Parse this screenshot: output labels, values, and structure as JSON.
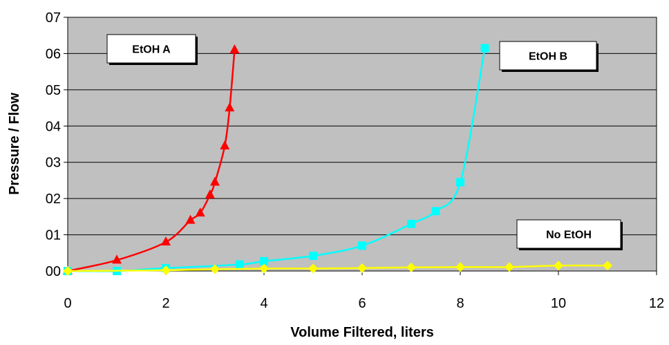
{
  "chart_data": {
    "type": "line",
    "xlabel": "Volume Filtered, liters",
    "ylabel": "Pressure / Flow",
    "xlim": [
      0,
      12
    ],
    "ylim": [
      0,
      7
    ],
    "x_ticks": [
      "0",
      "2",
      "4",
      "6",
      "8",
      "10",
      "12"
    ],
    "y_ticks": [
      "00",
      "01",
      "02",
      "03",
      "04",
      "05",
      "06",
      "07"
    ],
    "grid": "horizontal",
    "background": "#c0c0c0",
    "series": [
      {
        "name": "EtOH A",
        "color": "#ff0000",
        "marker": "triangle",
        "points": [
          [
            0,
            0.0
          ],
          [
            1.0,
            0.3
          ],
          [
            2.0,
            0.8
          ],
          [
            2.5,
            1.4
          ],
          [
            2.7,
            1.6
          ],
          [
            2.9,
            2.1
          ],
          [
            3.0,
            2.45
          ],
          [
            3.2,
            3.45
          ],
          [
            3.3,
            4.5
          ],
          [
            3.4,
            6.1
          ]
        ]
      },
      {
        "name": "EtOH B",
        "color": "#00ffff",
        "marker": "square",
        "points": [
          [
            0,
            0.0
          ],
          [
            1.0,
            0.0
          ],
          [
            2.0,
            0.08
          ],
          [
            3.5,
            0.18
          ],
          [
            4.0,
            0.27
          ],
          [
            5.0,
            0.42
          ],
          [
            6.0,
            0.7
          ],
          [
            7.0,
            1.3
          ],
          [
            7.5,
            1.65
          ],
          [
            8.0,
            2.45
          ],
          [
            8.5,
            6.15
          ]
        ]
      },
      {
        "name": "No EtOH",
        "color": "#ffff00",
        "marker": "diamond",
        "points": [
          [
            0,
            0.0
          ],
          [
            2.0,
            0.02
          ],
          [
            3.0,
            0.05
          ],
          [
            4.0,
            0.07
          ],
          [
            5.0,
            0.07
          ],
          [
            6.0,
            0.08
          ],
          [
            7.0,
            0.1
          ],
          [
            8.0,
            0.11
          ],
          [
            9.0,
            0.11
          ],
          [
            10.0,
            0.15
          ],
          [
            11.0,
            0.15
          ]
        ]
      }
    ]
  }
}
